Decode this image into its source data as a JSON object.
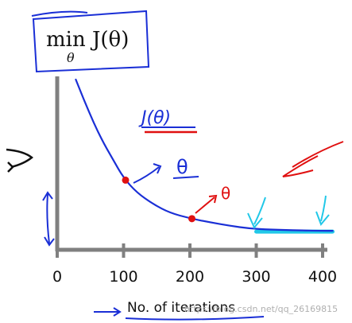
{
  "title_box": {
    "main": "min J(θ)",
    "subscript": "θ"
  },
  "annotations": {
    "curve_label": "J(θ)",
    "theta_upper": "θ",
    "theta_lower": "θ"
  },
  "watermark": "https://blog.csdn.net/qq_26169815",
  "colors": {
    "curve": "#1a2fd6",
    "axis": "#808080",
    "ink": "#1a2fd6",
    "red": "#e01010",
    "cyan": "#22c8e8",
    "black": "#111111"
  },
  "chart_data": {
    "type": "line",
    "title": "",
    "xlabel": "No. of iterations",
    "ylabel": "",
    "xlim": [
      0,
      420
    ],
    "ylim": [
      0,
      10
    ],
    "xticks": [
      "0",
      "100",
      "200",
      "300",
      "400"
    ],
    "xtick_values": [
      0,
      100,
      200,
      300,
      400
    ],
    "grid": false,
    "series": [
      {
        "x": [
          28,
          45,
          65,
          85,
          100,
          120,
          145,
          170,
          200,
          230,
          260,
          290,
          320,
          360,
          400,
          415
        ],
        "y": [
          10,
          8.2,
          6.3,
          4.8,
          3.7,
          2.75,
          2.0,
          1.45,
          1.1,
          0.85,
          0.62,
          0.45,
          0.38,
          0.33,
          0.3,
          0.3
        ]
      }
    ],
    "markers": [
      {
        "x": 103,
        "y": 3.55
      },
      {
        "x": 203,
        "y": 1.08
      }
    ],
    "highlight_range": {
      "x": [
        300,
        415
      ]
    }
  }
}
